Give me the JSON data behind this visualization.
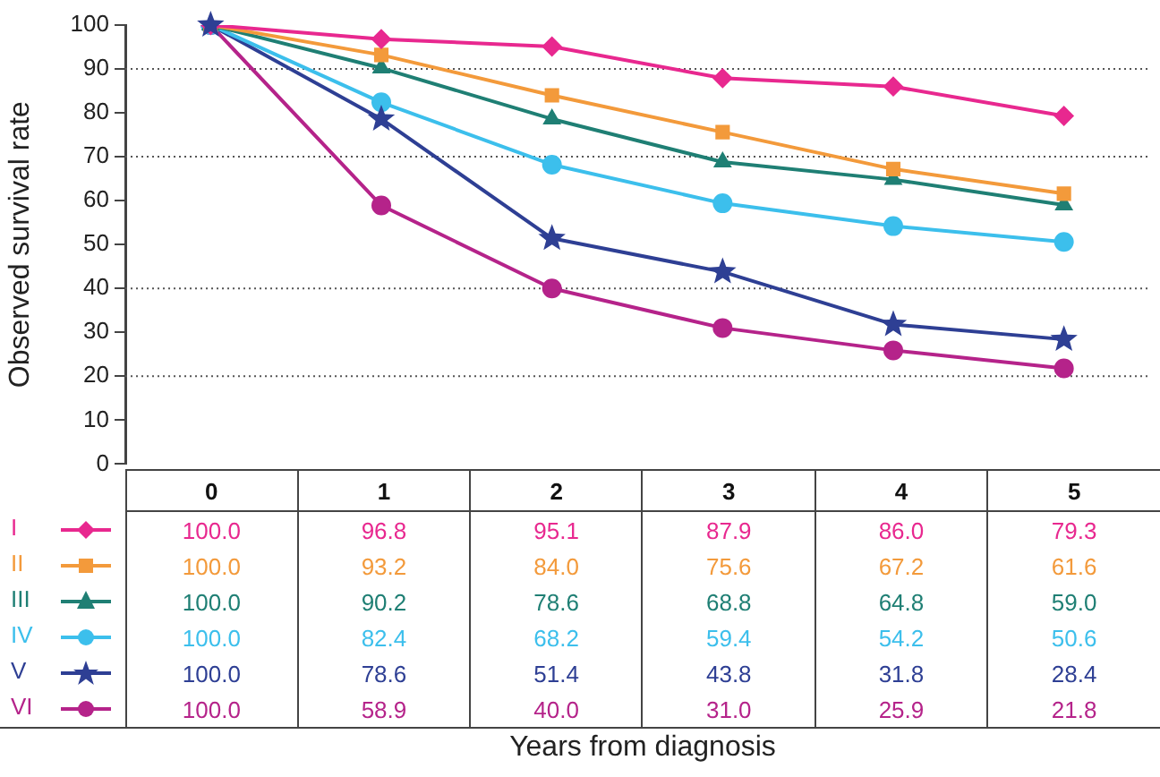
{
  "chart_data": {
    "type": "line",
    "annotations": [
      "Years from diagnosis"
    ],
    "ylabel": "Observed survival rate",
    "categories": [
      "0",
      "1",
      "2",
      "3",
      "4",
      "5"
    ],
    "series": [
      {
        "name": "I",
        "color": "#e8288f",
        "marker": "diamond",
        "values": [
          100.0,
          96.8,
          95.1,
          87.9,
          86.0,
          79.3
        ],
        "value_labels": [
          "100.0",
          "96.8",
          "95.1",
          "87.9",
          "86.0",
          "79.3"
        ]
      },
      {
        "name": "II",
        "color": "#f39a3b",
        "marker": "square",
        "values": [
          100.0,
          93.2,
          84.0,
          75.6,
          67.2,
          61.6
        ],
        "value_labels": [
          "100.0",
          "93.2",
          "84.0",
          "75.6",
          "67.2",
          "61.6"
        ]
      },
      {
        "name": "III",
        "color": "#1f7f74",
        "marker": "triangle",
        "values": [
          100.0,
          90.2,
          78.6,
          68.8,
          64.8,
          59.0
        ],
        "value_labels": [
          "100.0",
          "90.2",
          "78.6",
          "68.8",
          "64.8",
          "59.0"
        ]
      },
      {
        "name": "IV",
        "color": "#3cbfec",
        "marker": "circle",
        "values": [
          100.0,
          82.4,
          68.2,
          59.4,
          54.2,
          50.6
        ],
        "value_labels": [
          "100.0",
          "82.4",
          "68.2",
          "59.4",
          "54.2",
          "50.6"
        ]
      },
      {
        "name": "V",
        "color": "#2e3f94",
        "marker": "star",
        "values": [
          100.0,
          78.6,
          51.4,
          43.8,
          31.8,
          28.4
        ],
        "value_labels": [
          "100.0",
          "78.6",
          "51.4",
          "43.8",
          "31.8",
          "28.4"
        ]
      },
      {
        "name": "VI",
        "color": "#b5238a",
        "marker": "circle",
        "values": [
          100.0,
          58.9,
          40.0,
          31.0,
          25.9,
          21.8
        ],
        "value_labels": [
          "100.0",
          "58.9",
          "40.0",
          "31.0",
          "25.9",
          "21.8"
        ]
      }
    ],
    "ylim": [
      0,
      100
    ],
    "yticks": [
      0,
      10,
      20,
      30,
      40,
      50,
      60,
      70,
      80,
      90,
      100
    ],
    "grid": false,
    "ref_lines": [
      {
        "axis": "y",
        "value": 90,
        "line_style": "dotted"
      },
      {
        "axis": "y",
        "value": 70,
        "line_style": "dotted"
      },
      {
        "axis": "y",
        "value": 40,
        "line_style": "dotted"
      },
      {
        "axis": "y",
        "value": 20,
        "line_style": "dotted"
      }
    ],
    "legend": "bottom"
  }
}
